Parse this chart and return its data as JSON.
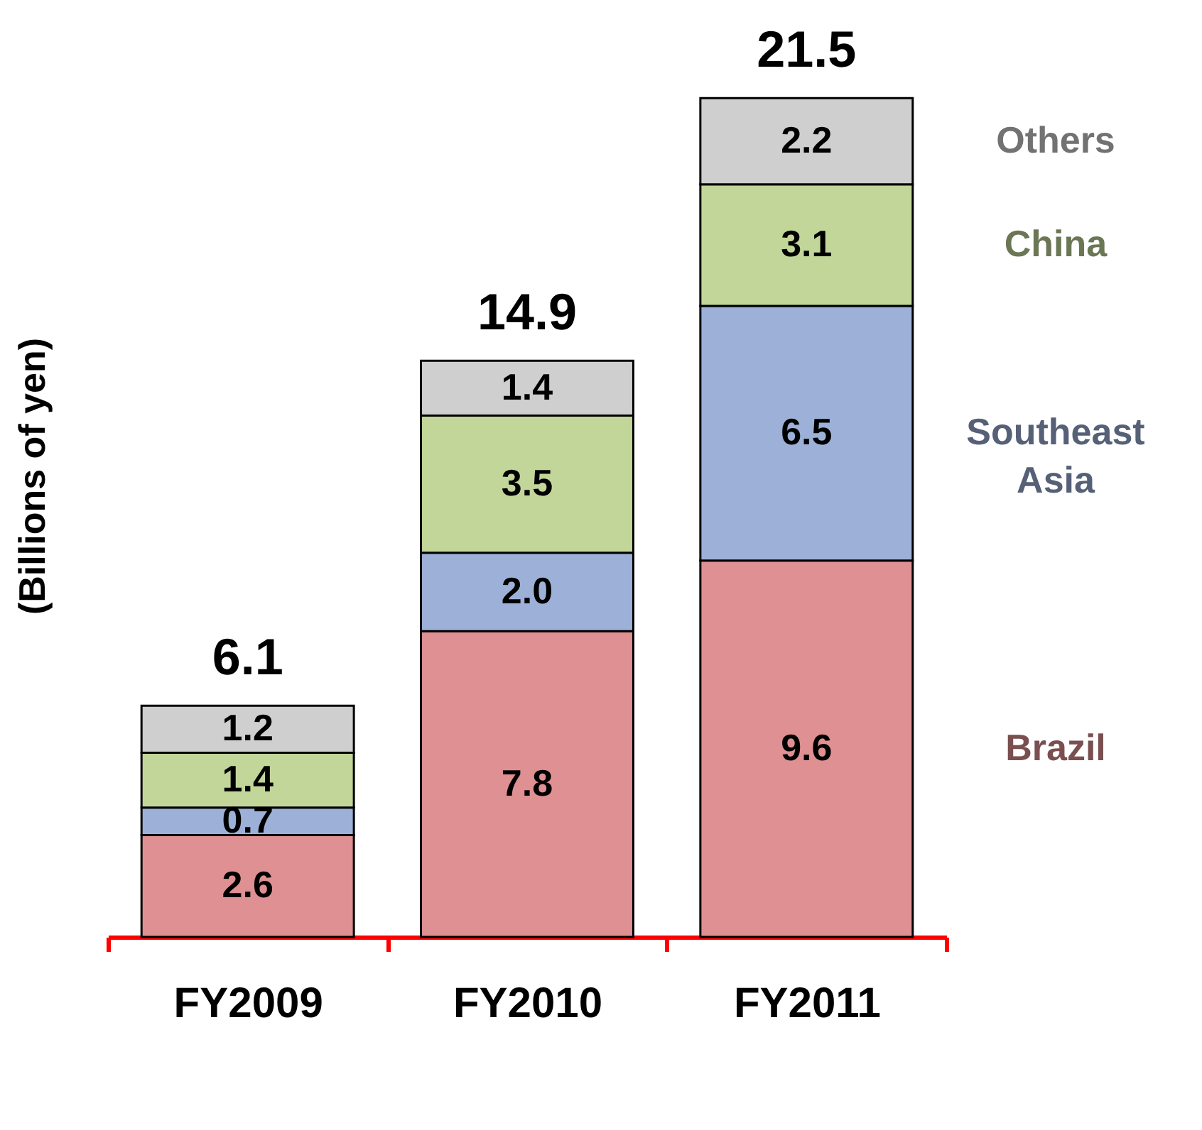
{
  "chart_data": {
    "type": "bar",
    "stacked": true,
    "ylabel": "(Billions of yen)",
    "categories": [
      "FY2009",
      "FY2010",
      "FY2011"
    ],
    "series": [
      {
        "name": "Brazil",
        "color": "#de9092",
        "values": [
          2.6,
          7.8,
          9.6
        ],
        "value_labels": [
          "2.6",
          "7.8",
          "9.6"
        ]
      },
      {
        "name": "Southeast Asia",
        "color": "#9db1d8",
        "values": [
          0.7,
          2.0,
          6.5
        ],
        "value_labels": [
          "0.7",
          "2.0",
          "6.5"
        ]
      },
      {
        "name": "China",
        "color": "#c2d69a",
        "values": [
          1.4,
          3.5,
          3.1
        ],
        "value_labels": [
          "1.4",
          "3.5",
          "3.1"
        ]
      },
      {
        "name": "Others",
        "color": "#cfcfcf",
        "values": [
          1.2,
          1.4,
          2.2
        ],
        "value_labels": [
          "1.2",
          "1.4",
          "2.2"
        ]
      }
    ],
    "totals": [
      "6.1",
      "14.9",
      "21.5"
    ],
    "legend": "right",
    "tick_labels": "x"
  }
}
